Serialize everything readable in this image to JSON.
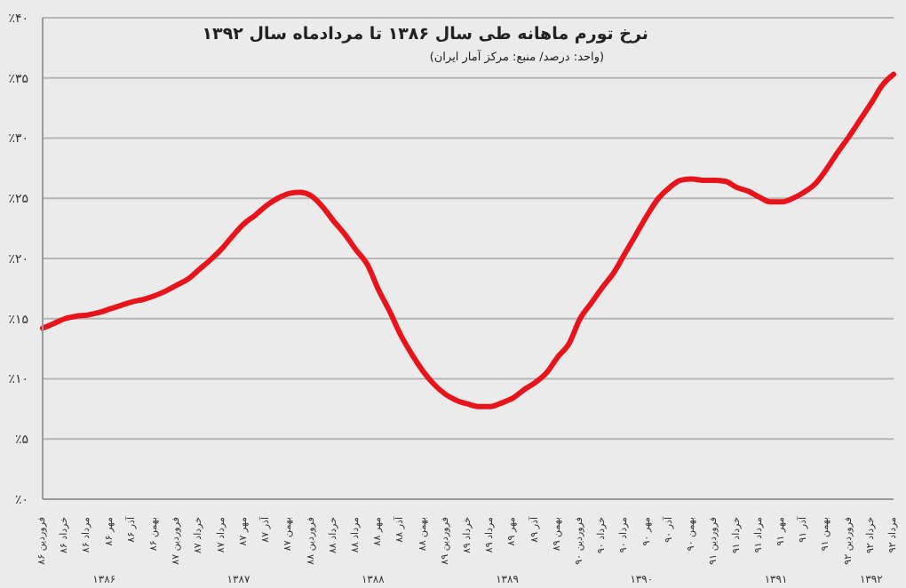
{
  "chart_data": {
    "type": "line",
    "title": "نرخ تورم ماهانه طی سال ۱۳۸۶ تا مردادماه سال ۱۳۹۲",
    "subtitle": "(واحد: درصد/ منبع: مرکز آمار ایران)",
    "categories": [
      "فروردین ۸۶",
      null,
      "خرداد ۸۶",
      null,
      "مرداد ۸۶",
      null,
      "مهر ۸۶",
      null,
      "آذر ۸۶",
      null,
      "بهمن ۸۶",
      null,
      "فروردین ۸۷",
      null,
      "خرداد ۸۷",
      null,
      "مرداد ۸۷",
      null,
      "مهر ۸۷",
      null,
      "آذر ۸۷",
      null,
      "بهمن ۸۷",
      null,
      "فروردین ۸۸",
      null,
      "خرداد ۸۸",
      null,
      "مرداد ۸۸",
      null,
      "مهر ۸۸",
      null,
      "آذر ۸۸",
      null,
      "بهمن ۸۸",
      null,
      "فروردین ۸۹",
      null,
      "خرداد ۸۹",
      null,
      "مرداد ۸۹",
      null,
      "مهر ۸۹",
      null,
      "آذر ۸۹",
      null,
      "بهمن ۸۹",
      null,
      "فروردین ۹۰",
      null,
      "خرداد ۹۰",
      null,
      "مرداد ۹۰",
      null,
      "مهر ۹۰",
      null,
      "آذر ۹۰",
      null,
      "بهمن ۹۰",
      null,
      "فروردین ۹۱",
      null,
      "خرداد ۹۱",
      null,
      "مرداد ۹۱",
      null,
      "مهر ۹۱",
      null,
      "آذر ۹۱",
      null,
      "بهمن ۹۱",
      null,
      "فروردین ۹۲",
      null,
      "خرداد ۹۲",
      null,
      "مرداد ۹۲"
    ],
    "series": [
      {
        "color": "#e8141b",
        "values": [
          14.2,
          14.6,
          15.0,
          15.2,
          15.3,
          15.5,
          15.8,
          16.1,
          16.4,
          16.6,
          16.9,
          17.3,
          17.8,
          18.3,
          19.1,
          19.9,
          20.8,
          21.9,
          22.9,
          23.6,
          24.4,
          25.0,
          25.4,
          25.5,
          25.2,
          24.3,
          23.1,
          22.0,
          20.7,
          19.5,
          17.4,
          15.6,
          13.6,
          12.0,
          10.6,
          9.5,
          8.7,
          8.2,
          7.9,
          7.7,
          7.7,
          8.0,
          8.4,
          9.1,
          9.7,
          10.5,
          11.8,
          12.9,
          15.0,
          16.3,
          17.6,
          18.8,
          20.4,
          22.0,
          23.6,
          25.0,
          25.9,
          26.5,
          26.6,
          26.5,
          26.5,
          26.4,
          25.9,
          25.6,
          25.1,
          24.7,
          24.7,
          25.0,
          25.5,
          26.2,
          27.4,
          28.8,
          30.1,
          31.5,
          32.9,
          34.4,
          35.3
        ]
      }
    ],
    "ylim": [
      0,
      40
    ],
    "yticks": [
      {
        "value": 0,
        "label": "٪۰"
      },
      {
        "value": 5,
        "label": "٪۵"
      },
      {
        "value": 10,
        "label": "٪۱۰"
      },
      {
        "value": 15,
        "label": "٪۱۵"
      },
      {
        "value": 20,
        "label": "٪۲۰"
      },
      {
        "value": 25,
        "label": "٪۲۵"
      },
      {
        "value": 30,
        "label": "٪۳۰"
      },
      {
        "value": 35,
        "label": "٪۳۵"
      },
      {
        "value": 40,
        "label": "٪۴۰"
      }
    ],
    "annotations": [
      "۱۳۸۶",
      "۱۳۸۷",
      "۱۳۸۸",
      "۱۳۸۹",
      "۱۳۹۰",
      "۱۳۹۱",
      "۱۳۹۲"
    ],
    "grid": "y",
    "legend": false,
    "marker": "none",
    "line_style": "solid"
  }
}
